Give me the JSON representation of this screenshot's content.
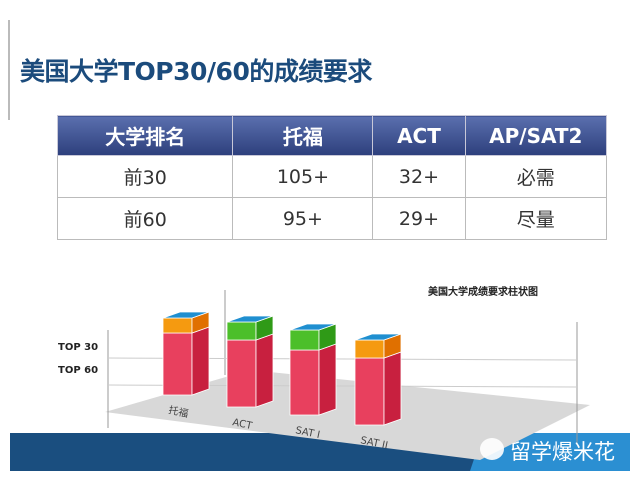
{
  "slide": {
    "title": "美国大学TOP30/60的成绩要求"
  },
  "table": {
    "headers": [
      "大学排名",
      "托福",
      "ACT",
      "AP/SAT2"
    ],
    "rows": [
      [
        "前30",
        "105+",
        "32+",
        "必需"
      ],
      [
        "前60",
        "95+",
        "29+",
        "尽量"
      ]
    ]
  },
  "chart": {
    "title": "美国大学成绩要求柱状图",
    "type": "3d-stacked-bar",
    "y_labels": [
      "TOP 30",
      "TOP 60"
    ],
    "categories": [
      "托福",
      "ACT",
      "SAT I",
      "SAT II"
    ],
    "colors": {
      "base": "#e8405e",
      "top_orange": "#f59a10",
      "top_green": "#4cbf2a",
      "cap": "#1f8fd0"
    }
  },
  "watermark": {
    "text": "留学爆米花",
    "icon": "wechat-icon"
  }
}
